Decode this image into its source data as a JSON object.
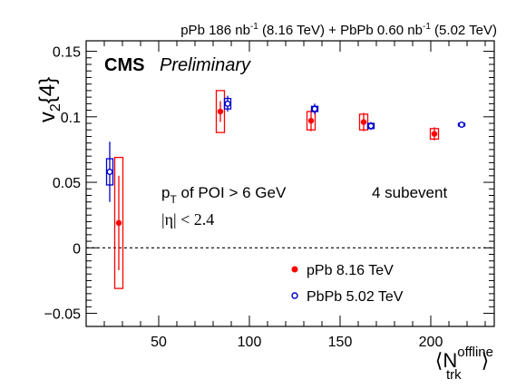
{
  "chart_data": {
    "type": "scatter",
    "header": {
      "pPb_a": "pPb 186 nb",
      "pPb_sup": "-1",
      "pPb_b": " (8.16 TeV) + PbPb 0.60 nb",
      "PbPb_sup": "-1",
      "PbPb_b": " (5.02 TeV)"
    },
    "cms": "CMS",
    "preliminary": "Preliminary",
    "ylabel": {
      "main": "v",
      "sub": "2",
      "tail": "{4}"
    },
    "xlabel": {
      "open": "⟨N",
      "sup": "offline",
      "sub": "trk",
      "close": "⟩"
    },
    "xlim": [
      10,
      235
    ],
    "ylim": [
      -0.06,
      0.158
    ],
    "xticks": [
      50,
      100,
      150,
      200
    ],
    "xtick_labels": [
      "50",
      "100",
      "150",
      "200"
    ],
    "yticks": [
      -0.05,
      0,
      0.05,
      0.1,
      0.15
    ],
    "ytick_labels": [
      "−0.05",
      "0",
      "0.05",
      "0.1",
      "0.15"
    ],
    "zero_line": "dashed",
    "annotations": {
      "pt_main": "p",
      "pt_sub": "T",
      "pt_tail": " of POI > 6 GeV",
      "subevent": "4 subevent",
      "eta": "|η| < 2.4"
    },
    "legend_position": "bottom-right",
    "series": [
      {
        "name": "pPb 8.16 TeV",
        "color": "#ff0000",
        "marker": "filled-circle",
        "points": [
          {
            "x": 28,
            "y": 0.019,
            "stat": 0.036,
            "sys": 0.05
          },
          {
            "x": 84,
            "y": 0.104,
            "stat": 0.008,
            "sys": 0.016
          },
          {
            "x": 134,
            "y": 0.097,
            "stat": 0.008,
            "sys": 0.007
          },
          {
            "x": 163,
            "y": 0.096,
            "stat": 0.007,
            "sys": 0.006
          },
          {
            "x": 202,
            "y": 0.087,
            "stat": 0.005,
            "sys": 0.004
          }
        ]
      },
      {
        "name": "PbPb 5.02 TeV",
        "color": "#0000cc",
        "marker": "open-circle",
        "points": [
          {
            "x": 23,
            "y": 0.058,
            "stat": 0.023,
            "sys": 0.01
          },
          {
            "x": 88,
            "y": 0.11,
            "stat": 0.006,
            "sys": 0.004
          },
          {
            "x": 136,
            "y": 0.106,
            "stat": 0.004,
            "sys": 0.002
          },
          {
            "x": 167,
            "y": 0.093,
            "stat": 0.003,
            "sys": 0.002
          },
          {
            "x": 217,
            "y": 0.094,
            "stat": 0.001,
            "sys": 0.001
          }
        ]
      }
    ]
  }
}
